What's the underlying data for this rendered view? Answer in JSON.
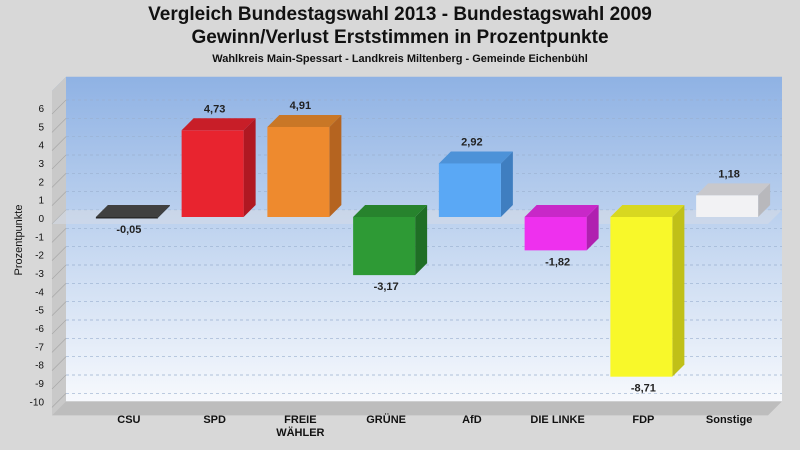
{
  "title": "Vergleich Bundestagswahl 2013 - Bundestagswahl 2009",
  "subtitle": "Gewinn/Verlust Erststimmen in Prozentpunkte",
  "region": "Wahlkreis Main-Spessart - Landkreis Miltenberg - Gemeinde Eichenbühl",
  "chart_data": {
    "type": "bar",
    "title": "Vergleich Bundestagswahl 2013 - Bundestagswahl 2009",
    "subtitle": "Gewinn/Verlust Erststimmen in Prozentpunkte",
    "xlabel": "",
    "ylabel": "Prozentpunkte",
    "ylim": [
      -10,
      6.5
    ],
    "yticks": [
      6,
      5,
      4,
      3,
      2,
      1,
      0,
      -1,
      -2,
      -3,
      -4,
      -5,
      -6,
      -7,
      -8,
      -9,
      -10
    ],
    "grid": true,
    "categories": [
      [
        "CSU"
      ],
      [
        "SPD"
      ],
      [
        "FREIE",
        "WÄHLER"
      ],
      [
        "GRÜNE"
      ],
      [
        "AfD"
      ],
      [
        "DIE LINKE"
      ],
      [
        "FDP"
      ],
      [
        "Sonstige"
      ]
    ],
    "values": [
      -0.05,
      4.73,
      4.91,
      -3.17,
      2.92,
      -1.82,
      -8.71,
      1.18
    ],
    "value_labels": [
      "-0,05",
      "4,73",
      "4,91",
      "-3,17",
      "2,92",
      "-1,82",
      "-8,71",
      "1,18"
    ],
    "colors": [
      "#2a2a2a",
      "#e8242f",
      "#ee8a2e",
      "#2e9a35",
      "#5aa8f5",
      "#ee30ee",
      "#f8f82a",
      "#f2f2f4"
    ],
    "side_colors": [
      "#151515",
      "#b01822",
      "#b56420",
      "#1f6e25",
      "#3f7ec0",
      "#b020b0",
      "#c0c018",
      "#b8b8bc"
    ],
    "top_colors": [
      "#404040",
      "#c81e28",
      "#c97726",
      "#27832d",
      "#4d92d8",
      "#c828c8",
      "#d8d820",
      "#c8c8cc"
    ]
  }
}
